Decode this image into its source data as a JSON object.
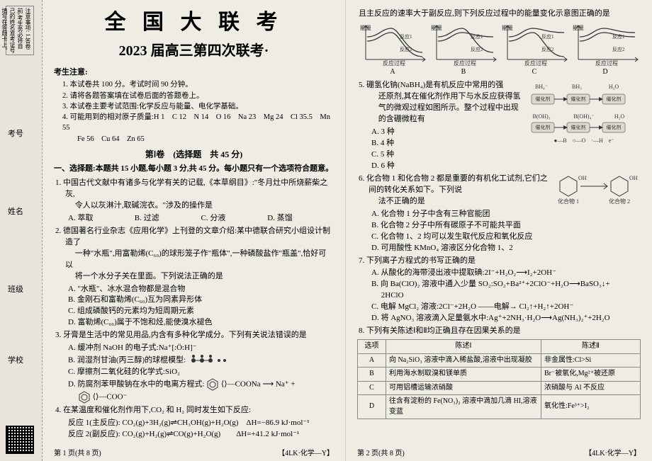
{
  "margin": {
    "warn": "注意事项:\n1.答卷前,考生务必将自己的姓名准考证号填写在答题卡上。\n2.全部答案在答题卡上完成,答在本试卷上无效。",
    "labels": [
      "考号",
      "姓名",
      "班级",
      "学校"
    ]
  },
  "title": {
    "main": "全 国 大 联 考",
    "sub": "2023 届高三第四次联考·"
  },
  "notice_head": "考生注意:",
  "notices": [
    "1. 本试卷共 100 分。考试时间 90 分钟。",
    "2. 请将各题答案填在试卷后面的答题卷上。",
    "3. 本试卷主要考试范围:化学反应与能量、电化学基础。",
    "4. 可能用到的相对原子质量:H 1　C 12　N 14　O 16　Na 23　Mg 24　Cl 35.5　Mn 55\n　　Fe 56　Cu 64　Zn 65"
  ],
  "section1": "第Ⅰ卷　(选择题　共 45 分)",
  "part1_head": "一、选择题:本题共 15 小题,每小题 3 分,共 45 分。每小题只有一个选项符合题意。",
  "q1": {
    "text": "1. 中国古代文献中有诸多与化学有关的记载,《本草纲目》:\"冬月灶中所烧薪柴之灰,\n　 令人以灰淋汁,取碱浣衣。\"涉及的操作是",
    "opts": [
      "A. 萃取",
      "B. 过滤",
      "C. 分液",
      "D. 蒸馏"
    ]
  },
  "q2": {
    "text": "2. 德国著名行业杂志《应用化学》上刊登的文章介绍:某中德联合研究小组设计制造了\n　 一种\"水瓶\",用富勒烯(C₆₀)的球形笼子作\"瓶体\",一种磷酸盐作\"瓶盖\",恰好可以\n　 将一个水分子关在里面。下列说法正确的是",
    "opts": [
      "A. \"水瓶\"、冰水混合物都是混合物",
      "B. 金刚石和富勒烯(C₆₀)互为同素异形体",
      "C. 组成磷酸钙的元素均为短周期元素",
      "D. 富勒烯(C₆₀)属于不饱和烃,能使溴水褪色"
    ]
  },
  "q3": {
    "text": "3. 牙膏是生活中的常见用品,内含有多种化学成分。下列有关说法错误的是",
    "opts": [
      "A. 缓冲剂 NaOH 的电子式:Na⁺[:Ö:H]⁻",
      "B. 润湿剂甘油(丙三醇)的球棍模型:",
      "C. 摩擦剂二氧化硅的化学式:SiO₂",
      "D. 防腐剂苯甲酸钠在水中的电离方程式:"
    ],
    "eqD_1": "⟨⟩—COONa ⟶ Na⁺ +",
    "eqD_2": "⟨⟩—COO⁻"
  },
  "q4": {
    "text": "4. 在某温度和催化剂作用下,CO₂ 和 H₂ 同时发生如下反应:",
    "r1": "反应 1(主反应): CO₂(g)+3H₂(g)⇌CH₃OH(g)+H₂O(g)　ΔH=−86.9 kJ·mol⁻¹",
    "r2": "反应 2(副反应): CO₂(g)+H₂(g)⇌CO(g)+H₂O(g)　　ΔH=+41.2 kJ·mol⁻¹",
    "tail": "且主反应的速率大于副反应,则下列反应过程中的能量变化示意图正确的是",
    "chart_opts": [
      "A",
      "B",
      "C",
      "D"
    ],
    "chart_series": [
      {
        "main_down": true,
        "sub_down": true
      },
      {
        "main_down": true,
        "sub_down": false
      },
      {
        "main_down": false,
        "sub_down": true
      },
      {
        "main_down": false,
        "sub_down": false
      }
    ],
    "chart_colors": {
      "axis": "#333",
      "curve": "#333"
    },
    "axis_x": "反应过程",
    "axis_y": "能量",
    "legend": [
      "反应1",
      "反应2"
    ]
  },
  "q5": {
    "text": "5. 硼氢化钠(NaBH₄)是有机反应中常用的强\n　 还原剂,其在催化剂作用下与水反应获得氢\n　 气的微观过程如图所示。整个过程中出现\n　 的含硼微粒有",
    "opts": [
      "A. 3 种",
      "B. 4 种",
      "C. 5 种",
      "D. 6 种"
    ],
    "fig": {
      "species": [
        "BH₄⁻",
        "BH₃",
        "B(OH)₃",
        "B(OH)₄⁻",
        "H₂O"
      ],
      "catalyst": "催化剂",
      "note": "●—B　○—O　·—H　e⁻"
    }
  },
  "q6": {
    "text": "6. 化合物 1 和化合物 2 都是重要的有机化工试剂,它们之间的转化关系如下。下列说\n　 法不正确的是",
    "opts": [
      "A. 化合物 1 分子中含有三种官能团",
      "B. 化合物 2 分子中所有碳原子不可能共平面",
      "C. 化合物 1、2 均可以发生取代反应和氧化反应",
      "D. 可用酸性 KMnO₄ 溶液区分化合物 1、2"
    ],
    "fig": {
      "c1": "化合物 1",
      "c2": "化合物 2",
      "oh": "OH"
    }
  },
  "q7": {
    "text": "7. 下列离子方程式的书写正确的是",
    "opts": [
      "A. 从酸化的海带浸出液中提取碘:2I⁻+H₂O₂⟶I₂+2OH⁻",
      "B. 向 Ba(ClO)₂ 溶液中通入少量 SO₂:SO₂+Ba²⁺+2ClO⁻+H₂O⟶BaSO₃↓+\n　 2HClO",
      "C. 电解 MgCl₂ 溶液:2Cl⁻+2H₂O ——电解→ Cl₂↑+H₂↑+2OH⁻",
      "D. 将 AgNO₃ 溶液滴入足量氨水中:Ag⁺+2NH₃·H₂O⟶Ag(NH₃)₂⁺+2H₂O"
    ]
  },
  "q8": {
    "text": "8. 下列有关陈述Ⅰ和Ⅱ均正确且存在因果关系的是",
    "table": {
      "head": [
        "选项",
        "陈述Ⅰ",
        "陈述Ⅱ"
      ],
      "rows": [
        [
          "A",
          "向 Na₂SiO₃ 溶液中滴入稀盐酸,溶液中出现凝胶",
          "非金属性:Cl>Si"
        ],
        [
          "B",
          "利用海水制取溴和镁单质",
          "Br⁻被氧化,Mg²⁺被还原"
        ],
        [
          "C",
          "可用铝槽运输浓硝酸",
          "浓硝酸与 Al 不反应"
        ],
        [
          "D",
          "往含有淀粉的 Fe(NO₃)₂ 溶液中滴加几滴 HI,溶液变蓝",
          "氧化性:Fe³⁺>I₂"
        ]
      ]
    }
  },
  "footer": {
    "p1": "第 1 页(共 8 页)",
    "p2": "第 2 页(共 8 页)",
    "code": "【4LK·化学—Y】"
  }
}
